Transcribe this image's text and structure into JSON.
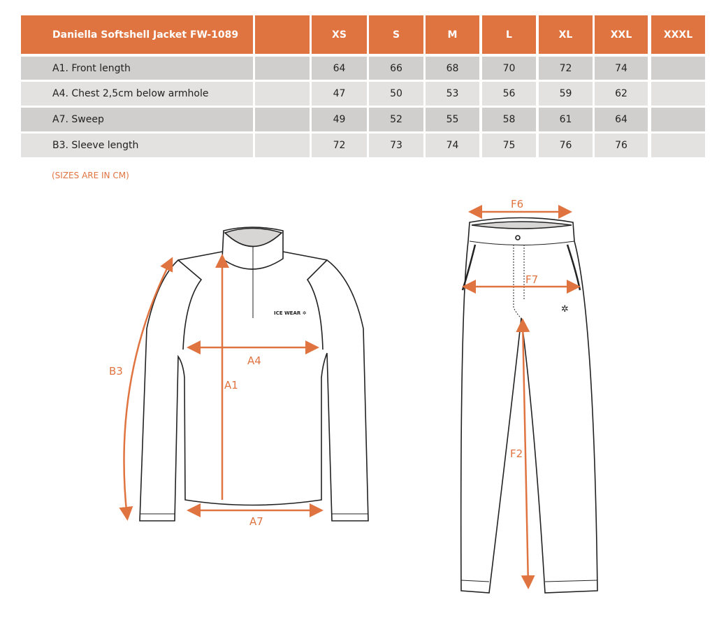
{
  "table": {
    "title": "Daniella Softshell Jacket FW-1089",
    "sizes": [
      "XS",
      "S",
      "M",
      "L",
      "XL",
      "XXL",
      "XXXL"
    ],
    "rows": [
      {
        "label": "A1. Front length",
        "values": [
          "64",
          "66",
          "68",
          "70",
          "72",
          "74",
          ""
        ]
      },
      {
        "label": "A4. Chest 2,5cm below armhole",
        "values": [
          "47",
          "50",
          "53",
          "56",
          "59",
          "62",
          ""
        ]
      },
      {
        "label": "A7. Sweep",
        "values": [
          "49",
          "52",
          "55",
          "58",
          "61",
          "64",
          ""
        ]
      },
      {
        "label": "B3. Sleeve length",
        "values": [
          "72",
          "73",
          "74",
          "75",
          "76",
          "76",
          ""
        ]
      }
    ]
  },
  "note": "(SIZES ARE IN CM)",
  "diagram": {
    "jacket_labels": {
      "a1": "A1",
      "a4": "A4",
      "a7": "A7",
      "b3": "B3"
    },
    "pants_labels": {
      "f6": "F6",
      "f7": "F7",
      "f2": "F2"
    },
    "logo_text": "ICE WEAR",
    "accent_color": "#e07440"
  }
}
